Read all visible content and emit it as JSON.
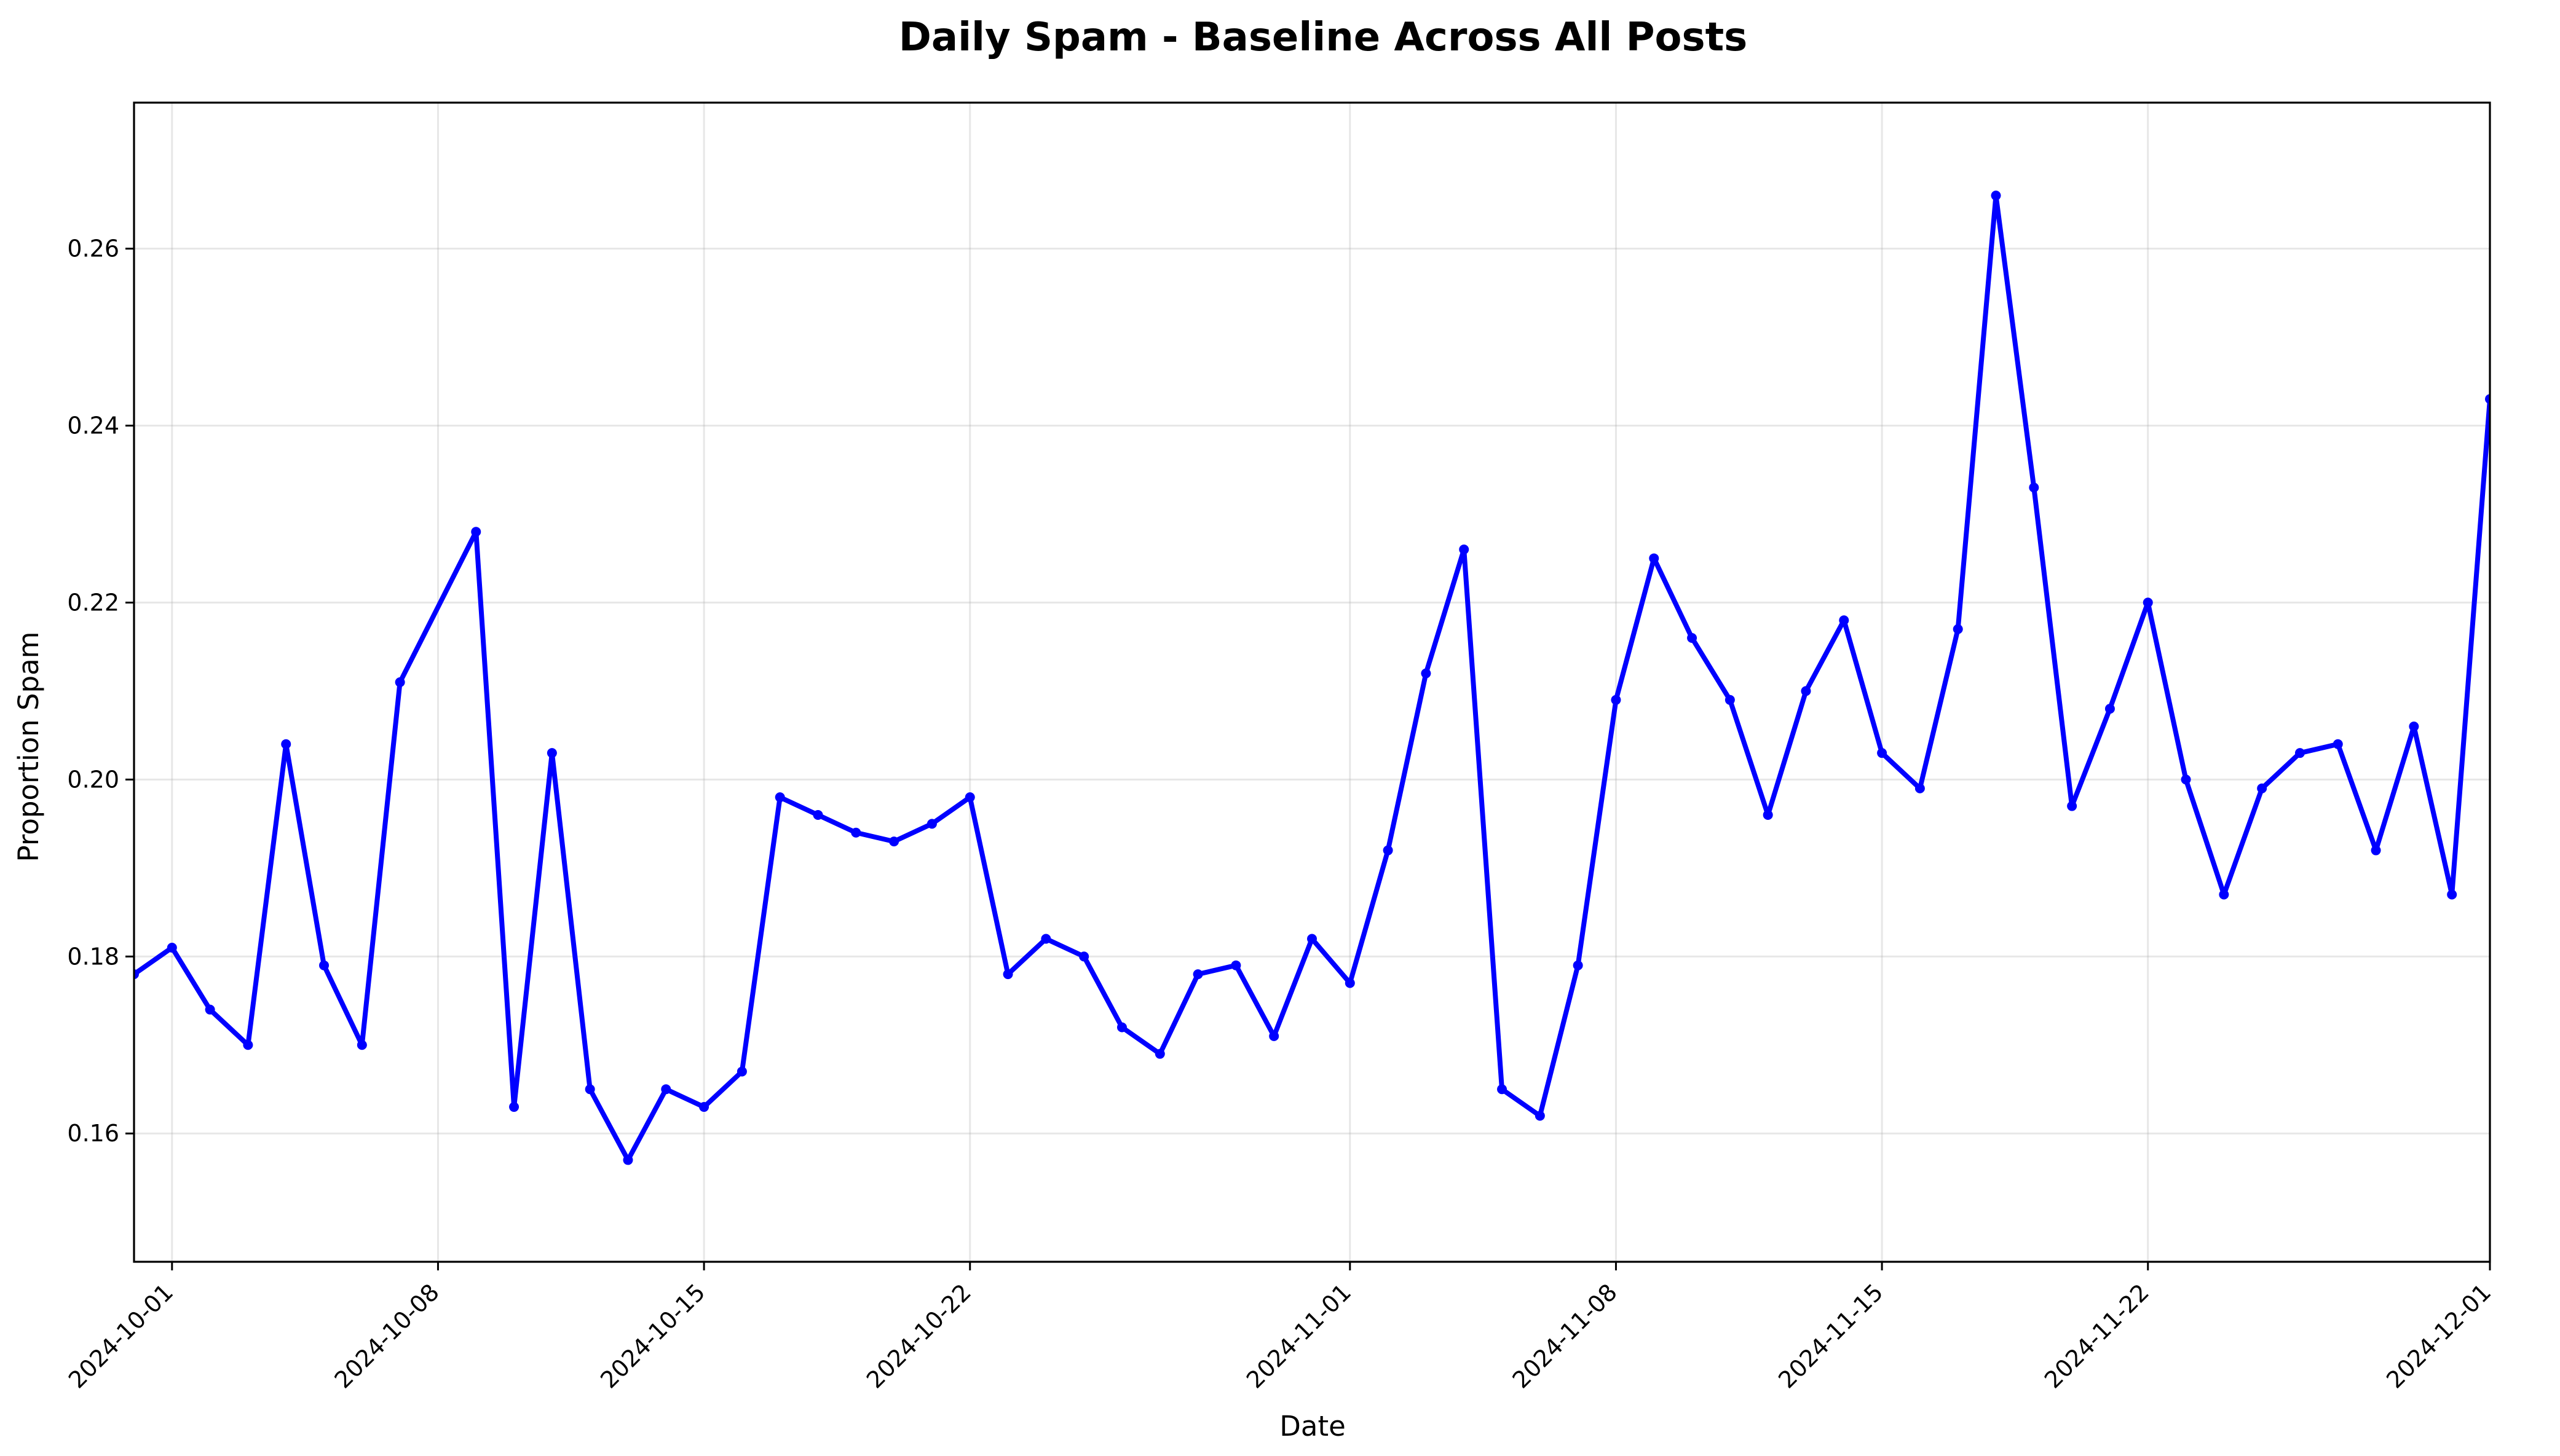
{
  "chart_data": {
    "type": "line",
    "title": "Daily Spam - Baseline Across All Posts",
    "xlabel": "Date",
    "ylabel": "Proportion Spam",
    "grid": true,
    "line_color": "#0000ff",
    "xlim": [
      "2024-09-30",
      "2024-12-01"
    ],
    "ylim": [
      0.1455,
      0.2765
    ],
    "x_ticks": [
      "2024-10-01",
      "2024-10-08",
      "2024-10-15",
      "2024-10-22",
      "2024-11-01",
      "2024-11-08",
      "2024-11-15",
      "2024-11-22",
      "2024-12-01"
    ],
    "y_ticks": [
      "0.16",
      "0.18",
      "0.20",
      "0.22",
      "0.24",
      "0.26"
    ],
    "series": [
      {
        "x": [
          "2024-09-30",
          "2024-10-01",
          "2024-10-02",
          "2024-10-03",
          "2024-10-04",
          "2024-10-05",
          "2024-10-06",
          "2024-10-07",
          "2024-10-09",
          "2024-10-10",
          "2024-10-11",
          "2024-10-12",
          "2024-10-13",
          "2024-10-14",
          "2024-10-15",
          "2024-10-16",
          "2024-10-17",
          "2024-10-18",
          "2024-10-19",
          "2024-10-20",
          "2024-10-21",
          "2024-10-22",
          "2024-10-23",
          "2024-10-24",
          "2024-10-25",
          "2024-10-26",
          "2024-10-27",
          "2024-10-28",
          "2024-10-29",
          "2024-10-30",
          "2024-10-31",
          "2024-11-01",
          "2024-11-02",
          "2024-11-03",
          "2024-11-04",
          "2024-11-05",
          "2024-11-06",
          "2024-11-07",
          "2024-11-08",
          "2024-11-09",
          "2024-11-10",
          "2024-11-11",
          "2024-11-12",
          "2024-11-13",
          "2024-11-14",
          "2024-11-15",
          "2024-11-16",
          "2024-11-17",
          "2024-11-18",
          "2024-11-19",
          "2024-11-20",
          "2024-11-21",
          "2024-11-22",
          "2024-11-23",
          "2024-11-24",
          "2024-11-25",
          "2024-11-26",
          "2024-11-27",
          "2024-11-28",
          "2024-11-29",
          "2024-11-30",
          "2024-12-01"
        ],
        "y": [
          0.178,
          0.181,
          0.174,
          0.17,
          0.204,
          0.179,
          0.17,
          0.211,
          0.228,
          0.163,
          0.203,
          0.165,
          0.157,
          0.165,
          0.163,
          0.167,
          0.198,
          0.196,
          0.194,
          0.193,
          0.195,
          0.198,
          0.178,
          0.182,
          0.18,
          0.172,
          0.169,
          0.178,
          0.179,
          0.171,
          0.182,
          0.177,
          0.192,
          0.212,
          0.226,
          0.165,
          0.162,
          0.179,
          0.209,
          0.225,
          0.216,
          0.209,
          0.196,
          0.21,
          0.218,
          0.203,
          0.199,
          0.217,
          0.266,
          0.233,
          0.197,
          0.208,
          0.22,
          0.2,
          0.187,
          0.199,
          0.203,
          0.204,
          0.192,
          0.206,
          0.187,
          0.243
        ]
      }
    ]
  }
}
